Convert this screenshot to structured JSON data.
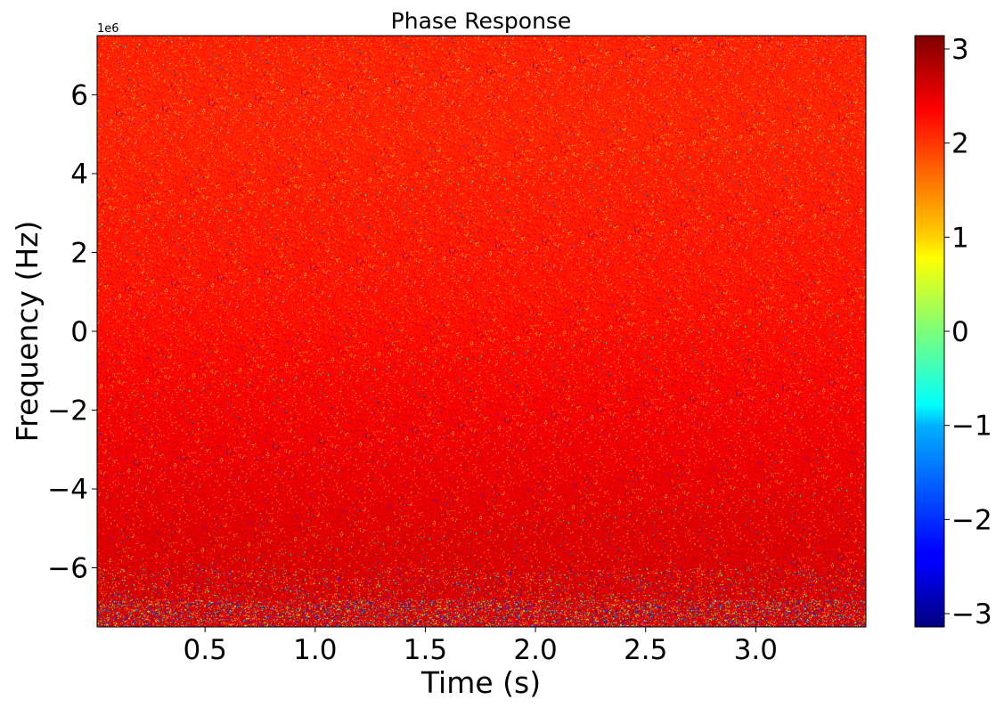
{
  "chart_data": {
    "type": "heatmap",
    "title": "Phase Response",
    "xlabel": "Time (s)",
    "ylabel": "Frequency (Hz)",
    "y_offset_label": "1e6",
    "xlim": [
      0.01,
      3.5
    ],
    "ylim": [
      -7.5,
      7.5
    ],
    "y_scale_factor": 1000000,
    "x_ticks": [
      0.5,
      1.0,
      1.5,
      2.0,
      2.5,
      3.0
    ],
    "x_tick_labels": [
      "0.5",
      "1.0",
      "1.5",
      "2.0",
      "2.5",
      "3.0"
    ],
    "y_ticks": [
      -6,
      -4,
      -2,
      0,
      2,
      4,
      6
    ],
    "y_tick_labels": [
      "−6",
      "−4",
      "−2",
      "0",
      "2",
      "4",
      "6"
    ],
    "colormap": "jet",
    "colorbar": {
      "range": [
        -3.14159,
        3.14159
      ],
      "ticks": [
        -3,
        -2,
        -1,
        0,
        1,
        2,
        3
      ],
      "tick_labels": [
        "−3",
        "−2",
        "−1",
        "0",
        "1",
        "2",
        "3"
      ]
    },
    "phase_profile": {
      "frequency_MHz": [
        -7.5,
        -6.5,
        -5,
        -3,
        -1,
        1,
        3,
        5,
        7.5
      ],
      "mean_phase_rad": [
        2.6,
        2.6,
        2.55,
        2.45,
        2.35,
        2.25,
        2.2,
        2.15,
        2.15
      ],
      "noise_note": "speckled noise, strongest near -7 MHz"
    },
    "grid": false
  }
}
